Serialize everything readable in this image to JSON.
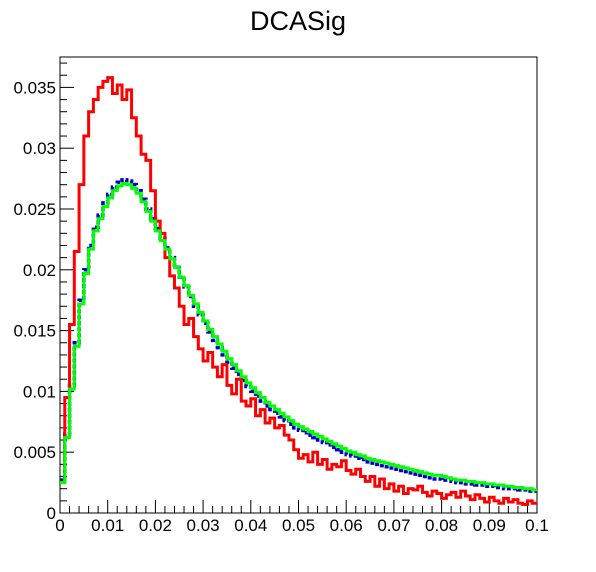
{
  "chart_data": {
    "type": "line",
    "title": "DCASig",
    "xlabel": "",
    "ylabel": "",
    "xlim": [
      0,
      0.1
    ],
    "ylim": [
      0,
      0.0375
    ],
    "grid": false,
    "legend": "none",
    "x_ticks": [
      "0",
      "0.01",
      "0.02",
      "0.03",
      "0.04",
      "0.05",
      "0.06",
      "0.07",
      "0.08",
      "0.09",
      "0.1"
    ],
    "y_ticks": [
      "0",
      "0.005",
      "0.01",
      "0.015",
      "0.02",
      "0.025",
      "0.03",
      "0.035"
    ],
    "bin_width": 0.001,
    "series": [
      {
        "color": "#0000cc",
        "values": [
          0.0027,
          0.0065,
          0.0105,
          0.014,
          0.0175,
          0.02,
          0.022,
          0.0235,
          0.0245,
          0.0255,
          0.0262,
          0.0268,
          0.0272,
          0.0274,
          0.0273,
          0.027,
          0.0265,
          0.0258,
          0.025,
          0.0242,
          0.0234,
          0.0226,
          0.0218,
          0.021,
          0.0202,
          0.0194,
          0.0186,
          0.0178,
          0.017,
          0.0163,
          0.0156,
          0.0149,
          0.0142,
          0.0136,
          0.013,
          0.0124,
          0.0119,
          0.0114,
          0.0109,
          0.0104,
          0.01,
          0.0096,
          0.0092,
          0.0088,
          0.0085,
          0.0082,
          0.0079,
          0.0076,
          0.0073,
          0.007,
          0.0068,
          0.0066,
          0.0064,
          0.0062,
          0.006,
          0.0058,
          0.0056,
          0.0054,
          0.0052,
          0.005,
          0.0048,
          0.0047,
          0.0045,
          0.0044,
          0.0042,
          0.0041,
          0.004,
          0.0039,
          0.0038,
          0.0037,
          0.0036,
          0.0035,
          0.0034,
          0.0033,
          0.0032,
          0.0031,
          0.003,
          0.0029,
          0.0028,
          0.0028,
          0.0027,
          0.0027,
          0.0026,
          0.0025,
          0.0025,
          0.0024,
          0.0024,
          0.0023,
          0.0023,
          0.0022,
          0.0022,
          0.0021,
          0.0021,
          0.002,
          0.002,
          0.002,
          0.0019,
          0.0019,
          0.0018,
          0.0018
        ]
      },
      {
        "color": "#ff0000",
        "values": [
          0.0025,
          0.0095,
          0.0155,
          0.0215,
          0.027,
          0.031,
          0.033,
          0.034,
          0.035,
          0.0355,
          0.0358,
          0.0345,
          0.0352,
          0.034,
          0.0348,
          0.0325,
          0.031,
          0.0295,
          0.029,
          0.0265,
          0.024,
          0.023,
          0.021,
          0.0195,
          0.0185,
          0.017,
          0.0155,
          0.016,
          0.0145,
          0.0135,
          0.0125,
          0.0132,
          0.012,
          0.0112,
          0.0122,
          0.0105,
          0.0098,
          0.011,
          0.0092,
          0.0088,
          0.0094,
          0.008,
          0.0085,
          0.0074,
          0.0078,
          0.007,
          0.0072,
          0.0064,
          0.006,
          0.0052,
          0.0045,
          0.0048,
          0.0042,
          0.005,
          0.004,
          0.0044,
          0.0036,
          0.004,
          0.0038,
          0.0043,
          0.0035,
          0.0032,
          0.0036,
          0.003,
          0.0026,
          0.003,
          0.0022,
          0.0028,
          0.002,
          0.0024,
          0.0018,
          0.0022,
          0.0016,
          0.002,
          0.0019,
          0.0022,
          0.0017,
          0.0014,
          0.0018,
          0.0016,
          0.0012,
          0.0015,
          0.0017,
          0.0013,
          0.0018,
          0.0014,
          0.0011,
          0.0015,
          0.0012,
          0.0009,
          0.0013,
          0.001,
          0.0008,
          0.0012,
          0.0009,
          0.0011,
          0.0008,
          0.0007,
          0.001,
          0.0008
        ]
      },
      {
        "color": "#00ff00",
        "values": [
          0.0025,
          0.0062,
          0.0102,
          0.0137,
          0.0172,
          0.0197,
          0.0217,
          0.0232,
          0.0242,
          0.0252,
          0.0259,
          0.0265,
          0.0269,
          0.0271,
          0.027,
          0.0267,
          0.0263,
          0.0256,
          0.0248,
          0.024,
          0.0232,
          0.0224,
          0.0217,
          0.0209,
          0.0202,
          0.0194,
          0.0187,
          0.0179,
          0.0172,
          0.0165,
          0.0158,
          0.0151,
          0.0145,
          0.0139,
          0.0133,
          0.0127,
          0.0122,
          0.0117,
          0.0112,
          0.0107,
          0.0103,
          0.0099,
          0.0095,
          0.0091,
          0.0088,
          0.0085,
          0.0082,
          0.0079,
          0.0076,
          0.0073,
          0.0071,
          0.0069,
          0.0067,
          0.0065,
          0.0063,
          0.0061,
          0.0059,
          0.0057,
          0.0055,
          0.0053,
          0.0051,
          0.005,
          0.0048,
          0.0047,
          0.0045,
          0.0044,
          0.0043,
          0.0042,
          0.0041,
          0.004,
          0.0039,
          0.0038,
          0.0037,
          0.0036,
          0.0035,
          0.0034,
          0.0033,
          0.0032,
          0.0031,
          0.0031,
          0.003,
          0.0029,
          0.0028,
          0.0027,
          0.0027,
          0.0026,
          0.0026,
          0.0025,
          0.0025,
          0.0024,
          0.0024,
          0.0023,
          0.0023,
          0.0022,
          0.0022,
          0.0021,
          0.0021,
          0.002,
          0.002,
          0.0019
        ]
      }
    ]
  }
}
